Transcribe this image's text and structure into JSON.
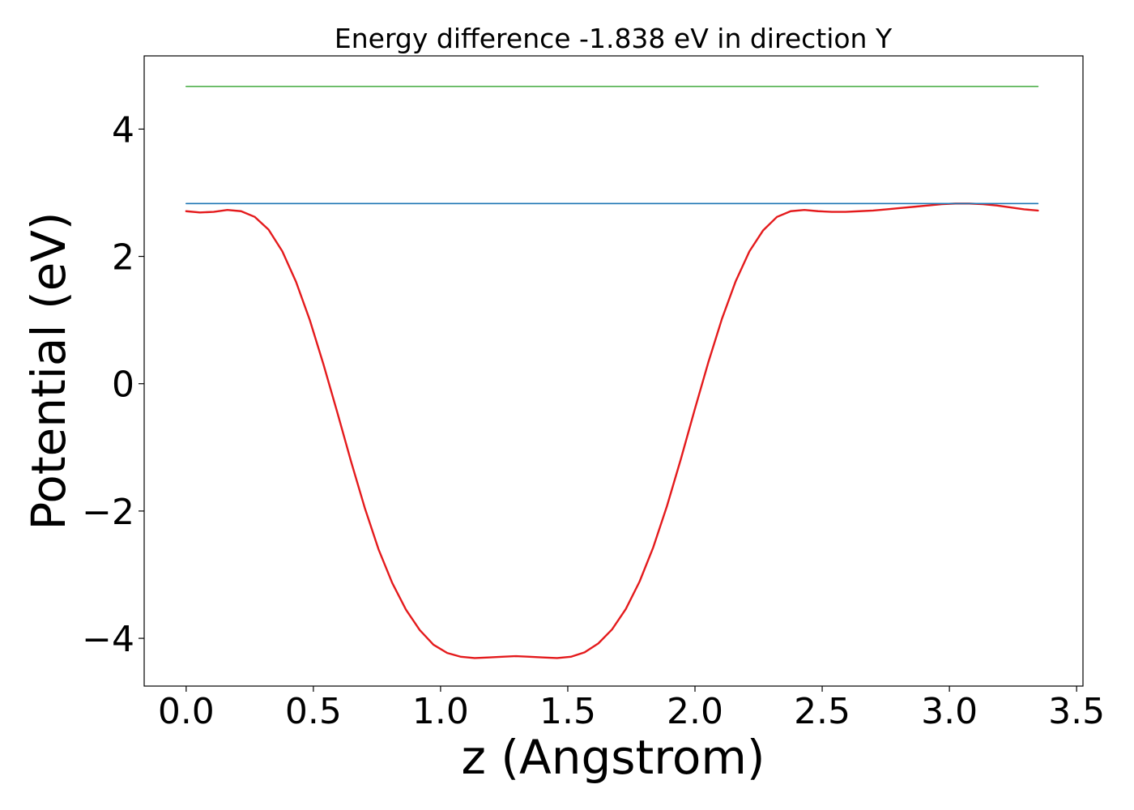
{
  "chart_data": {
    "type": "line",
    "title": "Energy difference -1.838 eV in direction Y",
    "xlabel": "z (Angstrom)",
    "ylabel": "Potential (eV)",
    "xlim": [
      -0.165,
      3.525
    ],
    "ylim": [
      -4.75,
      5.15
    ],
    "xticks": [
      0.0,
      0.5,
      1.0,
      1.5,
      2.0,
      2.5,
      3.0,
      3.5
    ],
    "xtick_labels": [
      "0.0",
      "0.5",
      "1.0",
      "1.5",
      "2.0",
      "2.5",
      "3.0",
      "3.5"
    ],
    "yticks": [
      -4,
      -2,
      0,
      2,
      4
    ],
    "ytick_labels": [
      "−4",
      "−2",
      "0",
      "2",
      "4"
    ],
    "grid": false,
    "series": [
      {
        "color": "#e41a1c",
        "x": [
          0.0,
          0.054,
          0.108,
          0.162,
          0.216,
          0.27,
          0.324,
          0.378,
          0.432,
          0.486,
          0.54,
          0.594,
          0.648,
          0.702,
          0.756,
          0.81,
          0.864,
          0.918,
          0.972,
          1.026,
          1.08,
          1.134,
          1.188,
          1.242,
          1.296,
          1.35,
          1.404,
          1.458,
          1.512,
          1.566,
          1.62,
          1.674,
          1.728,
          1.782,
          1.836,
          1.89,
          1.944,
          1.998,
          2.052,
          2.106,
          2.16,
          2.214,
          2.268,
          2.322,
          2.376,
          2.43,
          2.484,
          2.538,
          2.592,
          2.646,
          2.7,
          2.754,
          2.808,
          2.862,
          2.916,
          2.97,
          3.024,
          3.078,
          3.132,
          3.186,
          3.24,
          3.294,
          3.348
        ],
        "y": [
          2.71,
          2.69,
          2.7,
          2.73,
          2.71,
          2.62,
          2.42,
          2.08,
          1.6,
          1.0,
          0.3,
          -0.45,
          -1.22,
          -1.95,
          -2.6,
          -3.13,
          -3.55,
          -3.87,
          -4.1,
          -4.23,
          -4.29,
          -4.31,
          -4.3,
          -4.29,
          -4.28,
          -4.29,
          -4.3,
          -4.31,
          -4.29,
          -4.22,
          -4.08,
          -3.86,
          -3.54,
          -3.11,
          -2.57,
          -1.92,
          -1.19,
          -0.42,
          0.33,
          1.02,
          1.61,
          2.08,
          2.41,
          2.62,
          2.71,
          2.73,
          2.71,
          2.7,
          2.7,
          2.71,
          2.72,
          2.74,
          2.76,
          2.78,
          2.8,
          2.82,
          2.83,
          2.83,
          2.82,
          2.8,
          2.77,
          2.74,
          2.72
        ]
      },
      {
        "color": "#1f77b4",
        "x": [
          0.0,
          3.348
        ],
        "y": [
          2.83,
          2.83
        ]
      },
      {
        "color": "#4daf4a",
        "x": [
          0.0,
          3.348
        ],
        "y": [
          4.67,
          4.67
        ]
      }
    ]
  }
}
